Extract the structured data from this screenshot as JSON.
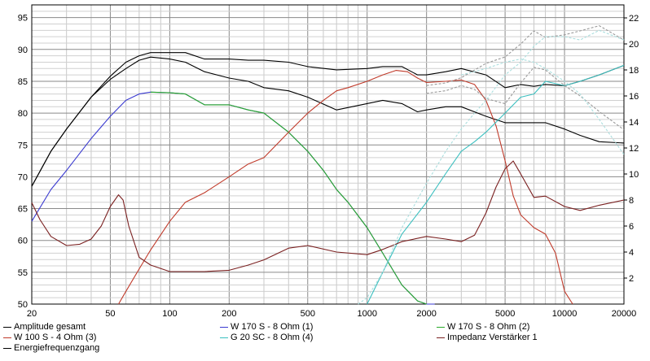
{
  "chart_data": {
    "type": "line",
    "x_scale": "log",
    "xlim": [
      20,
      20000
    ],
    "ylim_left": [
      50,
      97
    ],
    "ylim_right": [
      0,
      23
    ],
    "x_ticks": [
      20,
      50,
      100,
      200,
      500,
      1000,
      2000,
      5000,
      10000,
      20000
    ],
    "x_tick_labels": [
      "20",
      "50",
      "100",
      "200",
      "500",
      "1000",
      "2000",
      "5000",
      "10000",
      "20000"
    ],
    "y_ticks_left": [
      "50",
      "55",
      "60",
      "65",
      "70",
      "75",
      "80",
      "85",
      "90",
      "95"
    ],
    "y_ticks_right": [
      "2",
      "4",
      "6",
      "8",
      "10",
      "12",
      "14",
      "16",
      "18",
      "20",
      "22"
    ],
    "grid": true,
    "series": [
      {
        "name": "Amplitude gesamt",
        "axis": "left",
        "color": "#000000",
        "x": [
          20,
          25,
          30,
          40,
          50,
          60,
          70,
          80,
          100,
          120,
          150,
          200,
          250,
          300,
          400,
          500,
          700,
          1000,
          1200,
          1500,
          1800,
          2000,
          2500,
          3000,
          4000,
          5000,
          6000,
          7000,
          8000,
          10000,
          12000,
          15000,
          20000
        ],
        "y": [
          68.5,
          74,
          77.5,
          82.5,
          85.8,
          88,
          89,
          89.5,
          89.5,
          89.5,
          88.5,
          88.5,
          88.3,
          88.3,
          88,
          87.3,
          86.8,
          87,
          87.3,
          87.3,
          86,
          86,
          86.5,
          87,
          86,
          84,
          84.5,
          84.2,
          84.5,
          84.3,
          85,
          86,
          87.5
        ]
      },
      {
        "name": "Energiefrequenzgang",
        "axis": "left",
        "color": "#000000",
        "x": [
          20,
          25,
          30,
          40,
          50,
          60,
          70,
          80,
          100,
          120,
          150,
          200,
          250,
          300,
          400,
          500,
          700,
          1000,
          1200,
          1500,
          1800,
          2000,
          2500,
          3000,
          4000,
          5000,
          6000,
          7000,
          8000,
          10000,
          12000,
          15000,
          20000
        ],
        "y": [
          68.5,
          74,
          77.5,
          82.5,
          85.3,
          87,
          88.3,
          88.8,
          88.5,
          88,
          86.5,
          85.5,
          85,
          84,
          83.5,
          82.5,
          80.5,
          81.5,
          82,
          81.5,
          80.2,
          80.5,
          81,
          81,
          79.5,
          78.5,
          78.5,
          78.5,
          78.5,
          77.5,
          76.5,
          75.5,
          75.3
        ]
      },
      {
        "name": "W 170 S - 8 Ohm (1)",
        "axis": "left",
        "color": "#3a3ad0",
        "x": [
          20,
          25,
          30,
          40,
          50,
          60,
          70,
          80,
          100,
          120,
          150,
          200,
          250,
          300,
          400,
          500,
          600,
          700,
          800,
          1000,
          1200,
          1500,
          1800,
          2000,
          2200
        ],
        "y": [
          63,
          68,
          71,
          76,
          79.5,
          82,
          83,
          83.3,
          83.2,
          83,
          81.3,
          81.3,
          80.5,
          80,
          77,
          74,
          71,
          68,
          66,
          62,
          58,
          53,
          50.5,
          50,
          50
        ]
      },
      {
        "name": "W 170 S - 8 Ohm (2)",
        "axis": "left",
        "color": "#2aaa2a",
        "x": [
          80,
          100,
          120,
          150,
          200,
          250,
          300,
          400,
          500,
          600,
          700,
          800,
          1000,
          1200,
          1500,
          1800,
          2000
        ],
        "y": [
          83.3,
          83.2,
          83,
          81.3,
          81.3,
          80.5,
          80,
          77,
          74,
          71,
          68,
          66,
          62,
          58,
          53,
          50.5,
          50
        ]
      },
      {
        "name": "W 100 S - 4 Ohm (3)",
        "axis": "left",
        "color": "#c03a2a",
        "x": [
          55,
          60,
          70,
          80,
          100,
          120,
          150,
          200,
          250,
          300,
          400,
          500,
          600,
          700,
          800,
          1000,
          1200,
          1400,
          1600,
          1800,
          2000,
          2500,
          3000,
          3500,
          4000,
          4500,
          5000,
          5500,
          6000,
          7000,
          8000,
          9000,
          10000,
          11000
        ],
        "y": [
          50,
          52,
          55.5,
          58.5,
          63,
          66,
          67.5,
          70,
          72,
          73,
          77,
          80,
          82,
          83.5,
          84,
          85,
          86,
          86.7,
          86.5,
          85.5,
          84.8,
          85,
          85.2,
          84.5,
          82,
          78,
          72.5,
          67,
          64,
          62,
          61,
          58,
          52,
          50
        ]
      },
      {
        "name": "G 20 SC - 8 Ohm (4)",
        "axis": "left",
        "color": "#3abfbf",
        "x": [
          1000,
          1200,
          1500,
          2000,
          2500,
          3000,
          3500,
          4000,
          5000,
          6000,
          7000,
          8000,
          10000,
          12000,
          15000,
          20000
        ],
        "y": [
          50,
          55,
          61,
          66,
          70.5,
          74,
          75.5,
          77,
          80,
          82.5,
          83,
          85,
          84.3,
          85,
          86,
          87.5
        ]
      },
      {
        "name": "Impedanz Verstärker 1",
        "axis": "right",
        "color": "#7a2020",
        "x": [
          20,
          22,
          25,
          30,
          35,
          40,
          45,
          50,
          55,
          58,
          62,
          70,
          80,
          100,
          120,
          150,
          200,
          250,
          300,
          400,
          500,
          700,
          1000,
          1200,
          1500,
          2000,
          2500,
          3000,
          3500,
          4000,
          4500,
          5000,
          5500,
          6000,
          7000,
          8000,
          10000,
          12000,
          15000,
          20000
        ],
        "y": [
          7.8,
          6.5,
          5.2,
          4.5,
          4.6,
          5,
          6,
          7.5,
          8.4,
          8,
          6,
          3.6,
          3,
          2.5,
          2.5,
          2.5,
          2.6,
          3,
          3.4,
          4.3,
          4.5,
          4,
          3.8,
          4.2,
          4.8,
          5.2,
          5,
          4.8,
          5.3,
          7,
          9,
          10.4,
          11,
          10,
          8.2,
          8.3,
          7.5,
          7.2,
          7.6,
          8
        ]
      },
      {
        "name": "",
        "axis": "right",
        "color": "#9a9a9a",
        "dashed": true,
        "x": [
          2000,
          2500,
          3000,
          4000,
          5000,
          6000,
          7000,
          8000,
          10000,
          12000,
          15000,
          20000
        ],
        "y": [
          16.8,
          17,
          17.4,
          18.5,
          19,
          20,
          21,
          20.5,
          20.7,
          21,
          21.4,
          20.3
        ]
      },
      {
        "name": "",
        "axis": "right",
        "color": "#9a9a9a",
        "dashed": true,
        "x": [
          2000,
          2500,
          3000,
          3500,
          4000,
          5000,
          6000,
          7000,
          8000,
          10000,
          12000,
          15000,
          20000
        ],
        "y": [
          16.2,
          16.4,
          16.8,
          16.5,
          15.8,
          15.4,
          17,
          18.2,
          18,
          16.8,
          16,
          14.8,
          13.4
        ]
      },
      {
        "name": "",
        "axis": "left",
        "color": "#aadede",
        "dashed": true,
        "x": [
          900,
          1000,
          1200,
          1500,
          2000,
          2500,
          3000,
          3500,
          4000,
          5000,
          6000,
          7000,
          8000,
          10000,
          12000,
          15000,
          20000
        ],
        "y": [
          50,
          51,
          55,
          62,
          69,
          74,
          77.5,
          80,
          82,
          86,
          88,
          90.5,
          92,
          92,
          91.5,
          93,
          91.5
        ]
      },
      {
        "name": "",
        "axis": "left",
        "color": "#aadede",
        "dashed": true,
        "x": [
          3000,
          3500,
          4000,
          5000,
          6000,
          7000,
          8000,
          10000,
          12000,
          15000,
          20000
        ],
        "y": [
          86,
          86.5,
          87,
          88,
          88.5,
          88,
          87,
          85,
          83,
          79,
          73.5
        ]
      }
    ]
  },
  "legend": {
    "items": [
      {
        "label": "Amplitude gesamt",
        "color": "#000000"
      },
      {
        "label": "W 170 S - 8 Ohm (1)",
        "color": "#3a3ad0"
      },
      {
        "label": "W 170 S - 8 Ohm (2)",
        "color": "#2aaa2a"
      },
      {
        "label": "W 100 S - 4 Ohm (3)",
        "color": "#c03a2a"
      },
      {
        "label": "G 20 SC - 8 Ohm (4)",
        "color": "#3abfbf"
      },
      {
        "label": "Impedanz Verstärker 1",
        "color": "#7a2020"
      },
      {
        "label": "Energiefrequenzgang",
        "color": "#000000"
      }
    ]
  }
}
